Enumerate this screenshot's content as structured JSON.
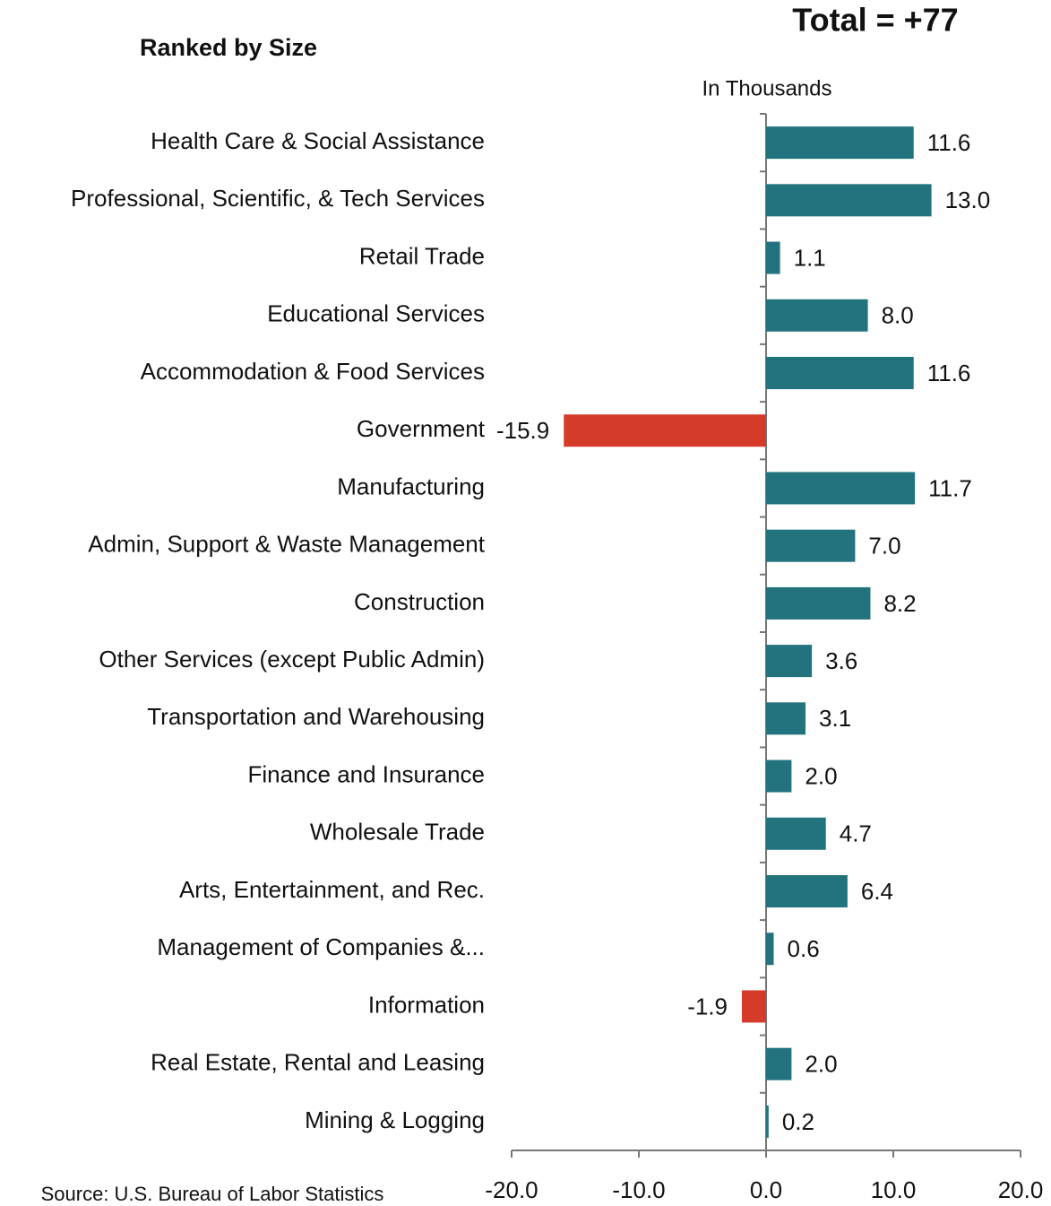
{
  "chart_data": {
    "type": "barh",
    "title": "Total = +77",
    "subtitle": "Ranked by Size",
    "unit_label": "In Thousands",
    "source": "Source: U.S. Bureau of Labor Statistics",
    "categories": [
      "Health Care & Social Assistance",
      "Professional, Scientific, & Tech Services",
      "Retail Trade",
      "Educational Services",
      "Accommodation & Food Services",
      "Government",
      "Manufacturing",
      "Admin, Support & Waste Management",
      "Construction",
      "Other Services (except Public Admin)",
      "Transportation and Warehousing",
      "Finance and Insurance",
      "Wholesale Trade",
      "Arts, Entertainment, and Rec.",
      "Management of Companies &...",
      "Information",
      "Real Estate, Rental and Leasing",
      "Mining & Logging"
    ],
    "values": [
      11.6,
      13.0,
      1.1,
      8.0,
      11.6,
      -15.9,
      11.7,
      7.0,
      8.2,
      3.6,
      3.1,
      2.0,
      4.7,
      6.4,
      0.6,
      -1.9,
      2.0,
      0.2
    ],
    "value_labels": [
      "11.6",
      "13.0",
      "1.1",
      "8.0",
      "11.6",
      "-15.9",
      "11.7",
      "7.0",
      "8.2",
      "3.6",
      "3.1",
      "2.0",
      "4.7",
      "6.4",
      "0.6",
      "-1.9",
      "2.0",
      "0.2"
    ],
    "positive_color": "#23737e",
    "negative_color": "#d63b2a",
    "xlim": [
      -20,
      20
    ],
    "xticks": [
      {
        "value": -20,
        "label": "-20.0"
      },
      {
        "value": -10,
        "label": "-10.0"
      },
      {
        "value": 0,
        "label": "0.0"
      },
      {
        "value": 10,
        "label": "10.0"
      },
      {
        "value": 20,
        "label": "20.0"
      }
    ]
  }
}
